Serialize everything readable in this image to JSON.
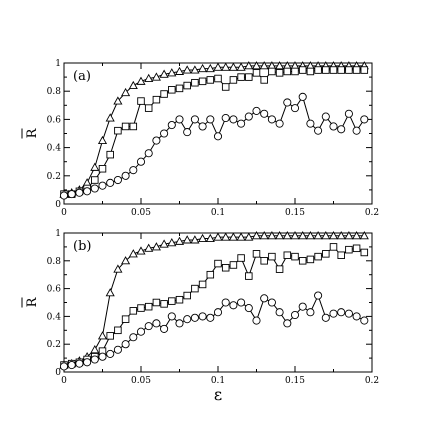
{
  "chart_data": [
    {
      "type": "line",
      "panel_label": "(a)",
      "ylabel": "R",
      "xlabel": "",
      "xlim": [
        0,
        0.2
      ],
      "ylim": [
        0,
        1
      ],
      "xticks": [
        0,
        0.05,
        0.1,
        0.15,
        0.2
      ],
      "xtick_labels": [
        "0",
        "0.05",
        "0.1",
        "0.15",
        "0.2"
      ],
      "yticks": [
        0,
        0.2,
        0.4,
        0.6,
        0.8,
        1
      ],
      "ytick_labels": [
        "0",
        "0.2",
        "0.4",
        "0.6",
        "0.8",
        "1"
      ],
      "series": [
        {
          "marker": "triangle",
          "x": [
            0.0,
            0.005,
            0.01,
            0.015,
            0.02,
            0.025,
            0.03,
            0.035,
            0.04,
            0.045,
            0.05,
            0.055,
            0.06,
            0.065,
            0.07,
            0.075,
            0.08,
            0.085,
            0.09,
            0.095,
            0.1,
            0.105,
            0.11,
            0.115,
            0.12,
            0.125,
            0.13,
            0.135,
            0.14,
            0.145,
            0.15,
            0.155,
            0.16,
            0.165,
            0.17,
            0.175,
            0.18,
            0.185,
            0.19,
            0.195
          ],
          "y": [
            0.07,
            0.08,
            0.1,
            0.15,
            0.26,
            0.45,
            0.61,
            0.73,
            0.79,
            0.84,
            0.87,
            0.89,
            0.9,
            0.92,
            0.93,
            0.94,
            0.95,
            0.95,
            0.96,
            0.96,
            0.97,
            0.97,
            0.97,
            0.97,
            0.98,
            0.98,
            0.98,
            0.98,
            0.98,
            0.98,
            0.98,
            0.98,
            0.98,
            0.98,
            0.98,
            0.98,
            0.98,
            0.98,
            0.98,
            0.98
          ]
        },
        {
          "marker": "square",
          "x": [
            0.0,
            0.005,
            0.01,
            0.015,
            0.02,
            0.025,
            0.03,
            0.035,
            0.04,
            0.045,
            0.05,
            0.055,
            0.06,
            0.065,
            0.07,
            0.075,
            0.08,
            0.085,
            0.09,
            0.095,
            0.1,
            0.105,
            0.11,
            0.115,
            0.12,
            0.125,
            0.13,
            0.135,
            0.14,
            0.145,
            0.15,
            0.155,
            0.16,
            0.165,
            0.17,
            0.175,
            0.18,
            0.185,
            0.19,
            0.195
          ],
          "y": [
            0.07,
            0.07,
            0.09,
            0.11,
            0.17,
            0.25,
            0.35,
            0.52,
            0.55,
            0.55,
            0.73,
            0.68,
            0.74,
            0.78,
            0.81,
            0.82,
            0.84,
            0.86,
            0.87,
            0.88,
            0.89,
            0.83,
            0.88,
            0.9,
            0.9,
            0.93,
            0.88,
            0.94,
            0.93,
            0.94,
            0.94,
            0.95,
            0.94,
            0.95,
            0.95,
            0.95,
            0.95,
            0.95,
            0.95,
            0.95
          ]
        },
        {
          "marker": "circle",
          "x": [
            0.0,
            0.005,
            0.01,
            0.015,
            0.02,
            0.025,
            0.03,
            0.035,
            0.04,
            0.045,
            0.05,
            0.055,
            0.06,
            0.065,
            0.07,
            0.075,
            0.08,
            0.085,
            0.09,
            0.095,
            0.1,
            0.105,
            0.11,
            0.115,
            0.12,
            0.125,
            0.13,
            0.135,
            0.14,
            0.145,
            0.15,
            0.155,
            0.16,
            0.165,
            0.17,
            0.175,
            0.18,
            0.185,
            0.19,
            0.195
          ],
          "y": [
            0.06,
            0.07,
            0.08,
            0.09,
            0.11,
            0.13,
            0.15,
            0.17,
            0.2,
            0.24,
            0.3,
            0.36,
            0.45,
            0.5,
            0.56,
            0.6,
            0.51,
            0.6,
            0.55,
            0.6,
            0.48,
            0.61,
            0.6,
            0.57,
            0.62,
            0.66,
            0.64,
            0.6,
            0.57,
            0.72,
            0.68,
            0.76,
            0.57,
            0.52,
            0.62,
            0.55,
            0.53,
            0.64,
            0.52,
            0.6
          ]
        }
      ]
    },
    {
      "type": "line",
      "panel_label": "(b)",
      "ylabel": "R",
      "xlabel": "ε",
      "xlim": [
        0,
        0.2
      ],
      "ylim": [
        0,
        1
      ],
      "xticks": [
        0,
        0.05,
        0.1,
        0.15,
        0.2
      ],
      "xtick_labels": [
        "0",
        "0.05",
        "0.1",
        "0.15",
        "0.2"
      ],
      "yticks": [
        0,
        0.2,
        0.4,
        0.6,
        0.8,
        1
      ],
      "ytick_labels": [
        "0",
        "0.2",
        "0.4",
        "0.6",
        "0.8",
        "1"
      ],
      "series": [
        {
          "marker": "triangle",
          "x": [
            0.0,
            0.005,
            0.01,
            0.015,
            0.02,
            0.025,
            0.03,
            0.035,
            0.04,
            0.045,
            0.05,
            0.055,
            0.06,
            0.065,
            0.07,
            0.075,
            0.08,
            0.085,
            0.09,
            0.095,
            0.1,
            0.105,
            0.11,
            0.115,
            0.12,
            0.125,
            0.13,
            0.135,
            0.14,
            0.145,
            0.15,
            0.155,
            0.16,
            0.165,
            0.17,
            0.175,
            0.18,
            0.185,
            0.19,
            0.195
          ],
          "y": [
            0.05,
            0.06,
            0.08,
            0.11,
            0.16,
            0.26,
            0.57,
            0.74,
            0.8,
            0.85,
            0.87,
            0.89,
            0.9,
            0.92,
            0.93,
            0.94,
            0.95,
            0.95,
            0.96,
            0.96,
            0.97,
            0.97,
            0.97,
            0.97,
            0.97,
            0.98,
            0.98,
            0.98,
            0.98,
            0.98,
            0.98,
            0.98,
            0.98,
            0.98,
            0.98,
            0.98,
            0.98,
            0.98,
            0.98,
            0.98
          ]
        },
        {
          "marker": "square",
          "x": [
            0.0,
            0.005,
            0.01,
            0.015,
            0.02,
            0.025,
            0.03,
            0.035,
            0.04,
            0.045,
            0.05,
            0.055,
            0.06,
            0.065,
            0.07,
            0.075,
            0.08,
            0.085,
            0.09,
            0.095,
            0.1,
            0.105,
            0.11,
            0.115,
            0.12,
            0.125,
            0.13,
            0.135,
            0.14,
            0.145,
            0.15,
            0.155,
            0.16,
            0.165,
            0.17,
            0.175,
            0.18,
            0.185,
            0.19,
            0.195
          ],
          "y": [
            0.05,
            0.06,
            0.07,
            0.09,
            0.11,
            0.15,
            0.26,
            0.3,
            0.38,
            0.44,
            0.46,
            0.47,
            0.5,
            0.49,
            0.51,
            0.52,
            0.55,
            0.6,
            0.63,
            0.7,
            0.78,
            0.75,
            0.77,
            0.82,
            0.69,
            0.85,
            0.8,
            0.83,
            0.74,
            0.84,
            0.83,
            0.8,
            0.81,
            0.83,
            0.85,
            0.9,
            0.84,
            0.88,
            0.89,
            0.86
          ]
        },
        {
          "marker": "circle",
          "x": [
            0.0,
            0.005,
            0.01,
            0.015,
            0.02,
            0.025,
            0.03,
            0.035,
            0.04,
            0.045,
            0.05,
            0.055,
            0.06,
            0.065,
            0.07,
            0.075,
            0.08,
            0.085,
            0.09,
            0.095,
            0.1,
            0.105,
            0.11,
            0.115,
            0.12,
            0.125,
            0.13,
            0.135,
            0.14,
            0.145,
            0.15,
            0.155,
            0.16,
            0.165,
            0.17,
            0.175,
            0.18,
            0.185,
            0.19,
            0.195
          ],
          "y": [
            0.04,
            0.05,
            0.06,
            0.07,
            0.09,
            0.11,
            0.13,
            0.16,
            0.2,
            0.25,
            0.29,
            0.33,
            0.35,
            0.31,
            0.4,
            0.35,
            0.38,
            0.39,
            0.4,
            0.39,
            0.43,
            0.5,
            0.48,
            0.5,
            0.46,
            0.37,
            0.53,
            0.5,
            0.43,
            0.35,
            0.41,
            0.47,
            0.43,
            0.55,
            0.39,
            0.42,
            0.43,
            0.42,
            0.4,
            0.37
          ]
        }
      ]
    }
  ]
}
